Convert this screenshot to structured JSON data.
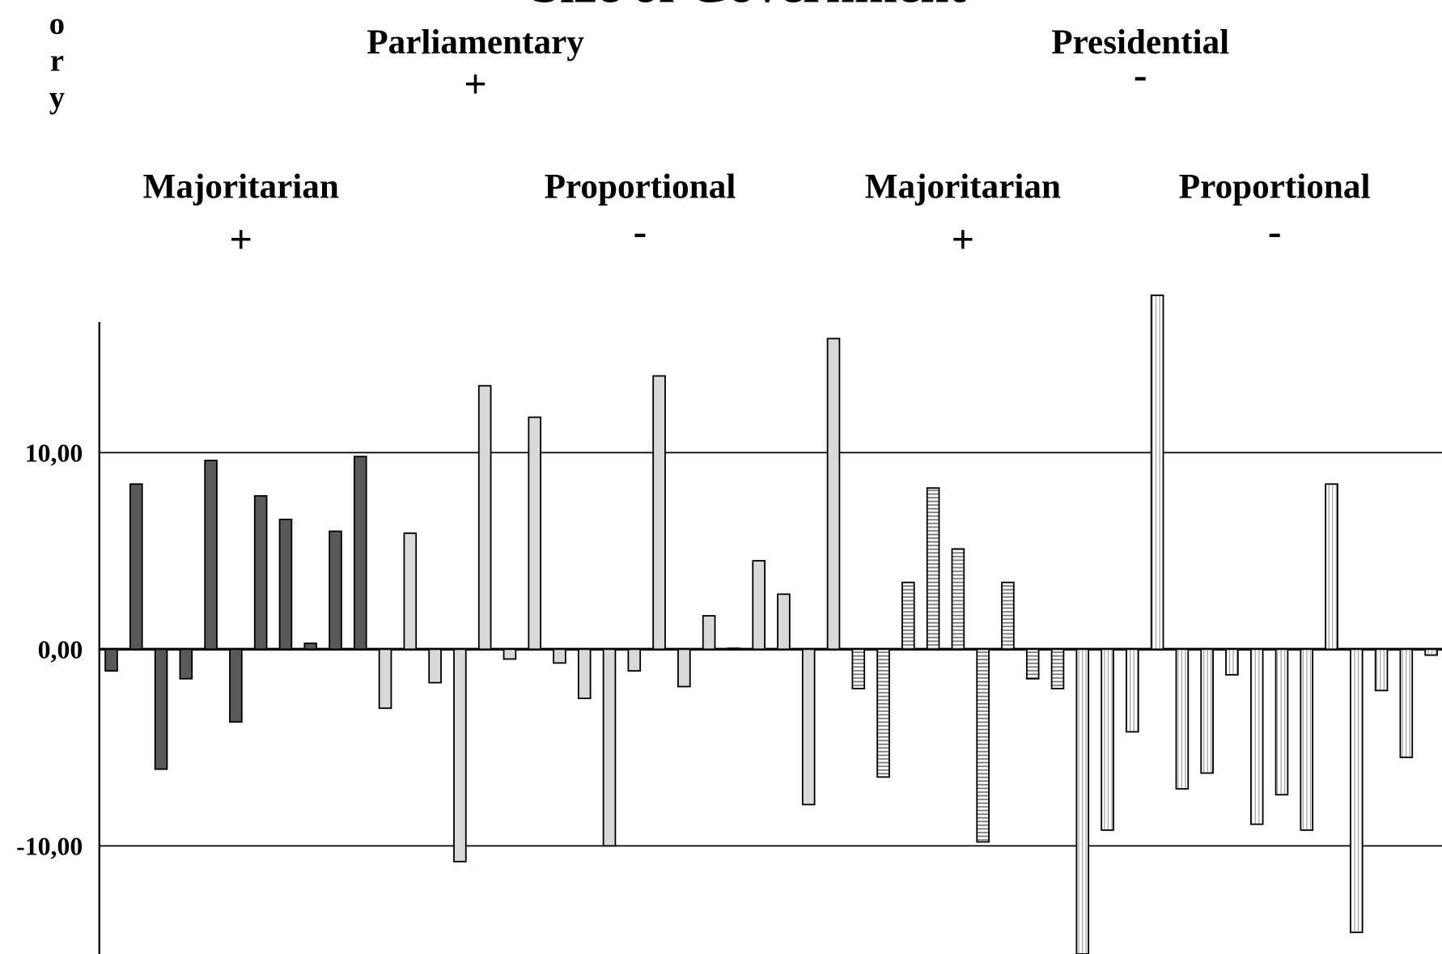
{
  "chart_data": {
    "type": "bar",
    "title": "Size of Government",
    "side_label": "Theory",
    "headers": [
      {
        "label": "Parliamentary",
        "sign": "+"
      },
      {
        "label": "Presidential",
        "sign": "-"
      }
    ],
    "groups": [
      {
        "label": "Majoritarian",
        "sign": "+",
        "color": "#595959",
        "pattern": "none",
        "values": [
          -1.1,
          8.4,
          -6.1,
          -1.5,
          9.6,
          -3.7,
          7.8,
          6.6,
          0.3,
          6.0,
          9.8
        ]
      },
      {
        "label": "Proportional",
        "sign": "-",
        "color": "#d9d9d9",
        "pattern": "none",
        "values": [
          -3.0,
          5.9,
          -1.7,
          -10.8,
          13.4,
          -0.5,
          11.8,
          -0.7,
          -2.5,
          -10.0,
          -1.1,
          13.9,
          -1.9,
          1.7,
          0.05,
          4.5,
          2.8,
          -7.9,
          15.8
        ]
      },
      {
        "label": "Majoritarian",
        "sign": "+",
        "color": "#9a9a9a",
        "pattern": "horizontal",
        "values": [
          -2.0,
          -6.5,
          3.4,
          8.2,
          5.1,
          -9.8,
          3.4,
          -1.5,
          -2.0
        ]
      },
      {
        "label": "Proportional",
        "sign": "-",
        "color": "#9a9a9a",
        "pattern": "vertical",
        "values": [
          -15.5,
          -9.2,
          -4.2,
          18.0,
          -7.1,
          -6.3,
          -1.3,
          -8.9,
          -7.4,
          -9.2,
          8.4,
          -14.4,
          -2.1,
          -5.5,
          -0.3
        ]
      }
    ],
    "ylim": [
      -15.5,
      18
    ],
    "yticks": [
      {
        "value": -10,
        "label": "-10,00"
      },
      {
        "value": 0,
        "label": "0,00"
      },
      {
        "value": 10,
        "label": "10,00"
      }
    ],
    "grid": true
  }
}
